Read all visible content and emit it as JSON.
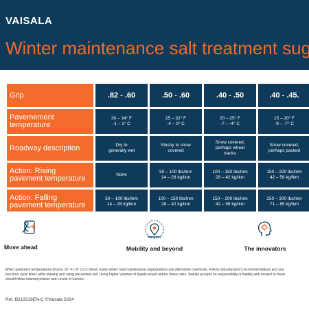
{
  "header": {
    "logo": "VAISALA",
    "title": "Winter maintenance salt treatment sug"
  },
  "table": {
    "rows": [
      {
        "label": "Grip",
        "type": "header",
        "cells": [
          ".82 - .60",
          ".50 - .60",
          ".40 - .50",
          ".40 - .45."
        ]
      },
      {
        "label": "Pavemement temperature",
        "cells": [
          [
            "30 – 34° F",
            "-1 – 1° C"
          ],
          [
            "25 – 32° F",
            "-4 – 0° C"
          ],
          [
            "20 – 25° F",
            "-7 – -4° C"
          ],
          [
            "15 – 20° F",
            "-9 – -7° C"
          ]
        ]
      },
      {
        "label": "Roadway description",
        "cells": [
          [
            "Dry to",
            "generally wet"
          ],
          [
            "Slushy to snow",
            "covered"
          ],
          [
            "Snow covered,",
            "perhaps wheel",
            "tracks"
          ],
          [
            "Snow covered,",
            "perhaps packed"
          ]
        ]
      },
      {
        "label": "Action: Rising pavement temperature",
        "cells": [
          [
            "None"
          ],
          [
            "50 – 100 lbs/lnm",
            "14 – 28 kg/lkm"
          ],
          [
            "100 – 150 lbs/lnm",
            "28 – 42 kg/lkm"
          ],
          [
            "150 – 200 lbs/lnm",
            "42 – 56 kg/lkm"
          ]
        ]
      },
      {
        "label": "Action: Falling pavement temperature",
        "cells": [
          [
            "50 – 100 lbs/lnm",
            "14 – 28 kg/lkm"
          ],
          [
            "100 – 150 lbs/lnm",
            "28 – 42 kg/lkm"
          ],
          [
            "150 – 200 lbs/lnm",
            "42 – 56 kg/lkm"
          ],
          [
            "250 – 300 lbs/lnm",
            "71 – 85 kg/lkm"
          ]
        ]
      }
    ]
  },
  "icons": [
    {
      "name": "move-ahead",
      "label": "Move ahead"
    },
    {
      "name": "mobility-and-beyond",
      "label": "Mobility and beyond"
    },
    {
      "name": "the-innovators",
      "label": "The innovators"
    }
  ],
  "disclaimer": {
    "line1": "When pavement temperatures drop to 15° F (-9° C) or below, many winter road maintenance organizations use alternative chemicals. Follow manufacturer's recommendations and you",
    "line2": "two-hour cycle times while plowing and using pre-wetted salt. Using higher volumes of liquids would reduce these rates. Vaisala accepts no responsibility or liability with respect to these",
    "line3": "should follow internal policies and Levels of Service."
  },
  "footer": {
    "ref": "Ref. B212519EN-C ©Vaisala 2024"
  },
  "colors": {
    "navy": "#0f3a59",
    "orange": "#f26b2a"
  }
}
